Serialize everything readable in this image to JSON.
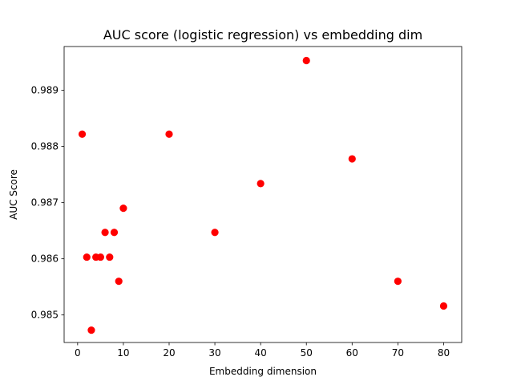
{
  "chart_data": {
    "type": "scatter",
    "title": "AUC score (logistic regression) vs embedding dim",
    "xlabel": "Embedding dimension",
    "ylabel": "AUC Score",
    "xlim": [
      -2.95,
      83.95
    ],
    "ylim": [
      0.98451,
      0.98978
    ],
    "xticks": [
      0,
      10,
      20,
      30,
      40,
      50,
      60,
      70,
      80
    ],
    "xtick_labels": [
      "0",
      "10",
      "20",
      "30",
      "40",
      "50",
      "60",
      "70",
      "80"
    ],
    "yticks": [
      0.985,
      0.986,
      0.987,
      0.988,
      0.989
    ],
    "ytick_labels": [
      "0.985",
      "0.986",
      "0.987",
      "0.988",
      "0.989"
    ],
    "grid": false,
    "marker_color": "#ff0000",
    "points": [
      {
        "x": 1,
        "y": 0.98822
      },
      {
        "x": 2,
        "y": 0.98603
      },
      {
        "x": 3,
        "y": 0.98473
      },
      {
        "x": 4,
        "y": 0.98603
      },
      {
        "x": 5,
        "y": 0.98603
      },
      {
        "x": 6,
        "y": 0.98647
      },
      {
        "x": 7,
        "y": 0.98603
      },
      {
        "x": 8,
        "y": 0.98647
      },
      {
        "x": 9,
        "y": 0.9856
      },
      {
        "x": 10,
        "y": 0.9869
      },
      {
        "x": 20,
        "y": 0.98822
      },
      {
        "x": 30,
        "y": 0.98647
      },
      {
        "x": 40,
        "y": 0.98734
      },
      {
        "x": 50,
        "y": 0.98953
      },
      {
        "x": 60,
        "y": 0.98778
      },
      {
        "x": 70,
        "y": 0.9856
      },
      {
        "x": 80,
        "y": 0.98516
      }
    ]
  }
}
